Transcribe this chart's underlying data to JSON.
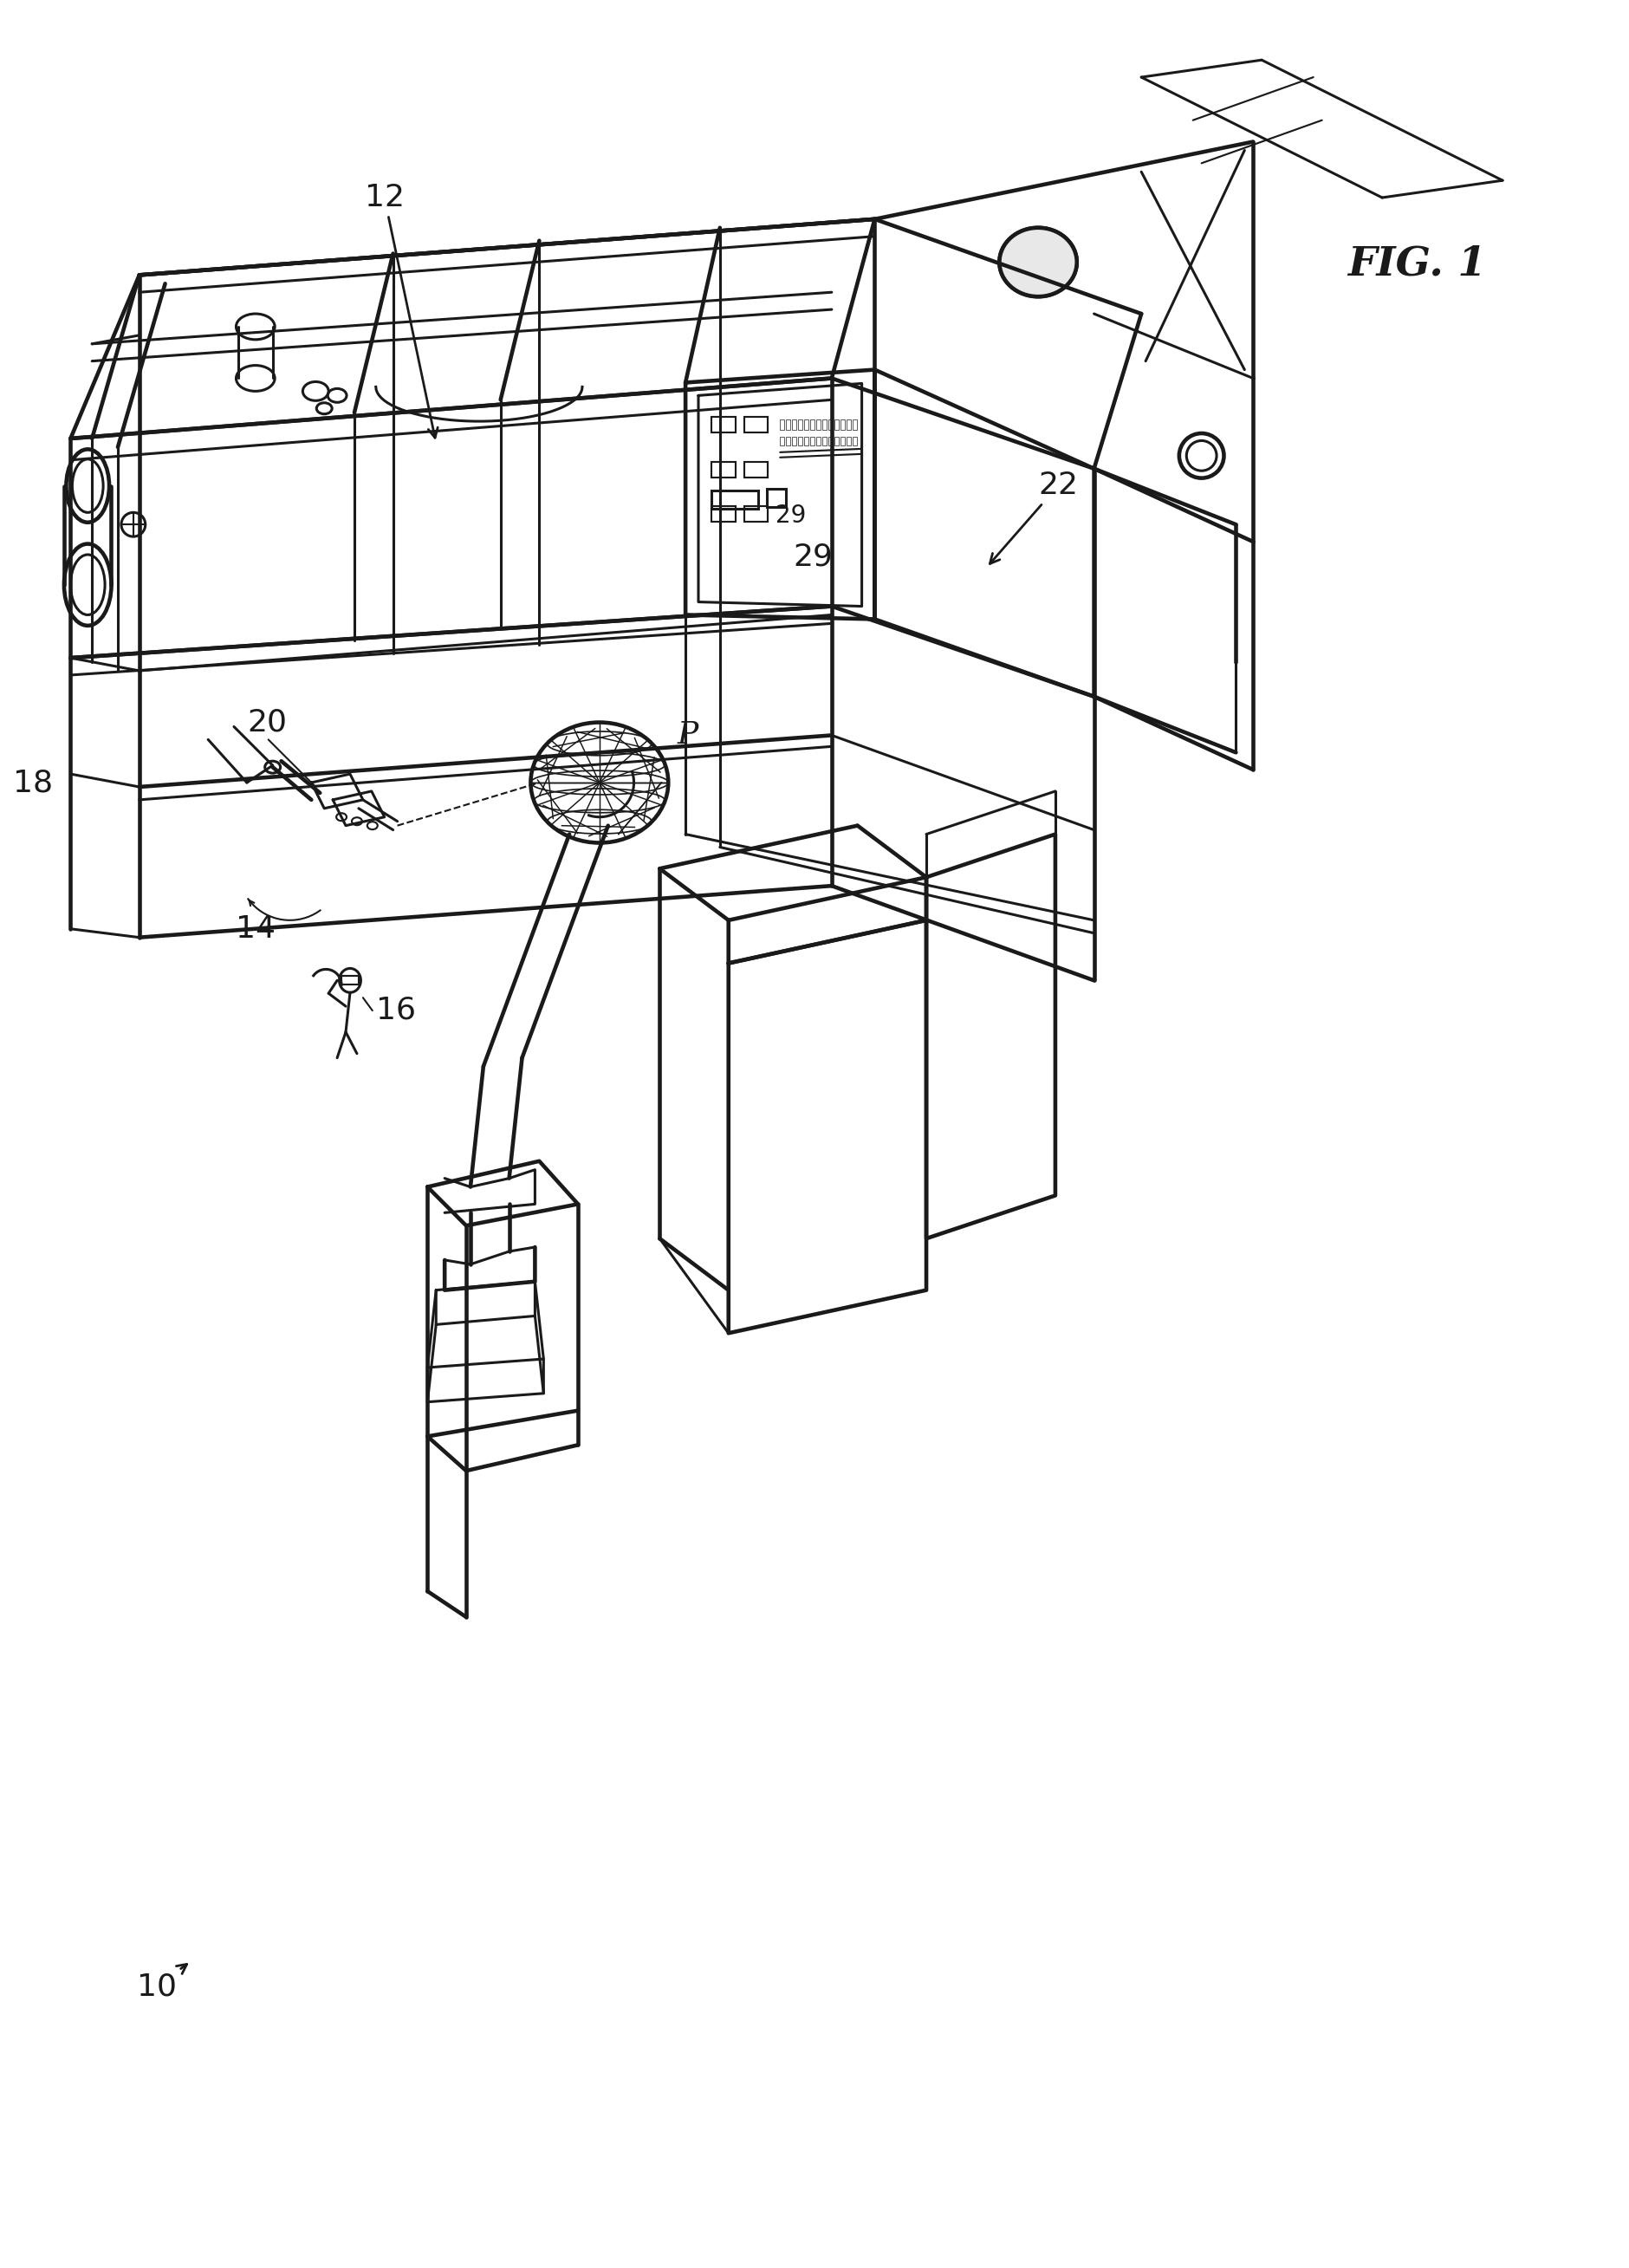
{
  "bg_color": "#ffffff",
  "line_color": "#1a1a1a",
  "line_width": 2.2,
  "fig_label": "FIG. 1"
}
